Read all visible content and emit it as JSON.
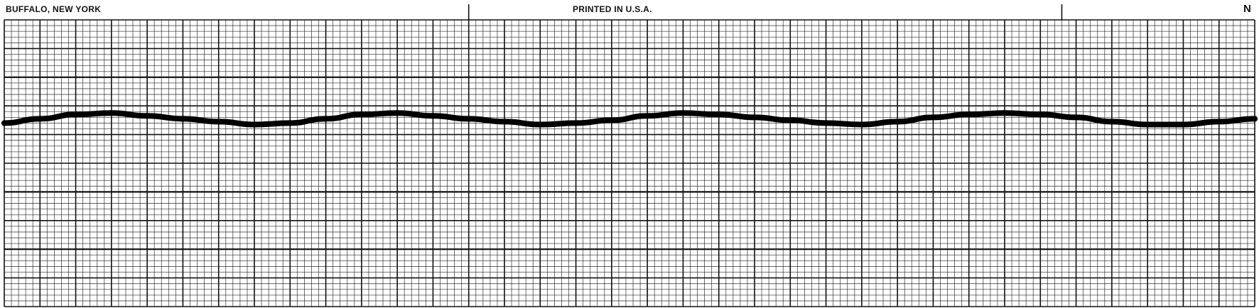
{
  "header": {
    "left_text": "BUFFALO, NEW YORK",
    "center_text": "PRINTED IN U.S.A.",
    "right_text": "N"
  },
  "colors": {
    "paper": "#ffffff",
    "ink": "#111111",
    "trace": "#000000"
  },
  "chart_data": {
    "type": "line",
    "title": "",
    "xlabel": "",
    "ylabel": "",
    "grid": true,
    "x_major_divisions": 35,
    "x_minor_per_major": 5,
    "y_major_divisions": 10,
    "y_minor_per_major": 5,
    "xlim": [
      0,
      35
    ],
    "ylim": [
      0,
      10
    ],
    "series": [
      {
        "name": "",
        "x": [
          0,
          1,
          2,
          3,
          4,
          5,
          6,
          7,
          8,
          9,
          10,
          11,
          12,
          13,
          14,
          15,
          16,
          17,
          18,
          19,
          20,
          21,
          22,
          23,
          24,
          25,
          26,
          27,
          28,
          29,
          30,
          31,
          32,
          33,
          34,
          35
        ],
        "values": [
          6.4,
          6.55,
          6.7,
          6.75,
          6.65,
          6.55,
          6.45,
          6.35,
          6.4,
          6.55,
          6.7,
          6.75,
          6.65,
          6.55,
          6.45,
          6.35,
          6.4,
          6.5,
          6.65,
          6.75,
          6.7,
          6.6,
          6.5,
          6.4,
          6.35,
          6.45,
          6.6,
          6.7,
          6.75,
          6.7,
          6.6,
          6.45,
          6.35,
          6.35,
          6.45,
          6.55
        ]
      }
    ]
  }
}
